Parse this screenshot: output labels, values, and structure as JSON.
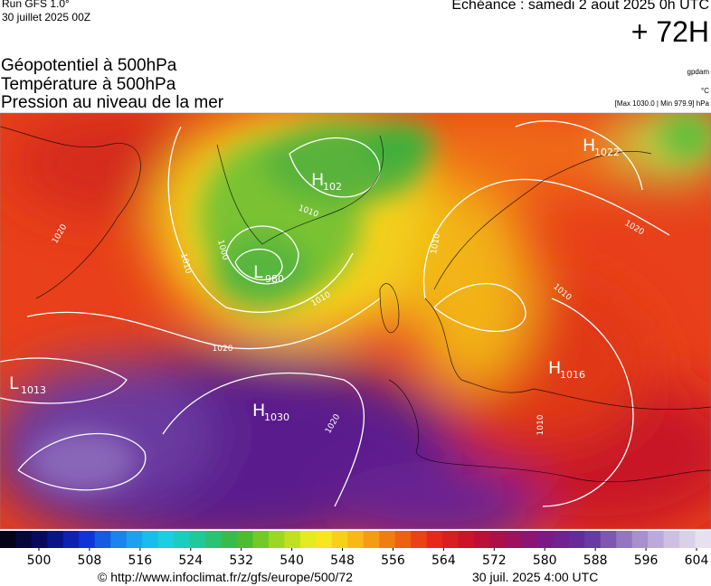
{
  "header": {
    "run": "Run GFS 1.0°",
    "date": "30 juillet 2025 00Z",
    "forecast": "Echéance : samedi 2 aout 2025 0h UTC",
    "lead": "+ 72H"
  },
  "titles": [
    "Géopotentiel à 500hPa",
    "Température à 500hPa",
    "Pression au niveau de la mer"
  ],
  "units": [
    "gpdam",
    "°C",
    "[Max 1030.0 | Min 979.9] hPa"
  ],
  "pressure_centers": [
    {
      "letter": "L",
      "value": "1013"
    },
    {
      "letter": "H",
      "value": "1030"
    },
    {
      "letter": "L",
      "value": "980"
    },
    {
      "letter": "H",
      "value": "102"
    },
    {
      "letter": "H",
      "value": "1022"
    },
    {
      "letter": "H",
      "value": "1016"
    }
  ],
  "isobar_labels": [
    "1020",
    "1010",
    "1000",
    "1010",
    "1020",
    "1010",
    "1020",
    "1010",
    "1020",
    "1010",
    "1010"
  ],
  "colorbar_labels": [
    500,
    508,
    516,
    524,
    532,
    540,
    548,
    556,
    564,
    572,
    580,
    588,
    596,
    604
  ],
  "footer": {
    "url": "© http://www.infoclimat.fr/z/gfs/europe/500/72",
    "time": "30 juil. 2025  4:00 UTC"
  }
}
